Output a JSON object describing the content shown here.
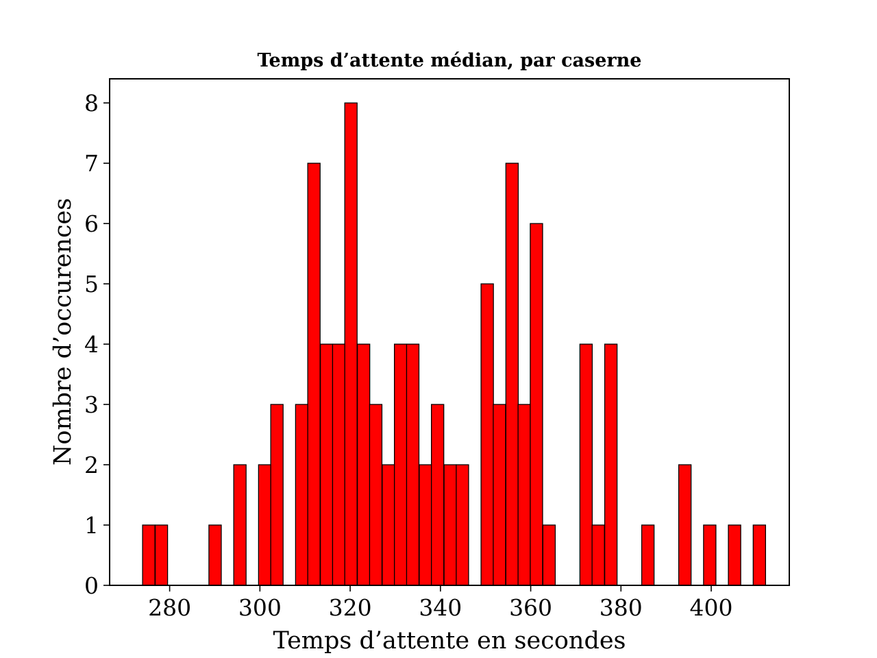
{
  "chart_data": {
    "type": "bar",
    "title": "Temps d’attente médian, par caserne",
    "xlabel": "Temps d’attente en secondes",
    "ylabel": "Nombre d’occurences",
    "xlim": [
      266.7,
      417.3
    ],
    "ylim": [
      0,
      8.4
    ],
    "bin_width": 2.74,
    "xticks": [
      280,
      300,
      320,
      340,
      360,
      380,
      400
    ],
    "yticks": [
      0,
      1,
      2,
      3,
      4,
      5,
      6,
      7,
      8
    ],
    "grid": false,
    "legend": "none",
    "bar_color": "#ff0000",
    "edge_color": "#000000",
    "bins": [
      {
        "x": 274.0,
        "count": 1
      },
      {
        "x": 276.8,
        "count": 1
      },
      {
        "x": 288.7,
        "count": 1
      },
      {
        "x": 294.2,
        "count": 2
      },
      {
        "x": 299.7,
        "count": 2
      },
      {
        "x": 302.4,
        "count": 3
      },
      {
        "x": 307.9,
        "count": 3
      },
      {
        "x": 310.6,
        "count": 7
      },
      {
        "x": 313.4,
        "count": 4
      },
      {
        "x": 316.1,
        "count": 4
      },
      {
        "x": 318.8,
        "count": 8
      },
      {
        "x": 321.6,
        "count": 4
      },
      {
        "x": 324.3,
        "count": 3
      },
      {
        "x": 327.1,
        "count": 2
      },
      {
        "x": 329.8,
        "count": 4
      },
      {
        "x": 332.5,
        "count": 4
      },
      {
        "x": 335.3,
        "count": 2
      },
      {
        "x": 338.0,
        "count": 3
      },
      {
        "x": 340.8,
        "count": 2
      },
      {
        "x": 343.5,
        "count": 2
      },
      {
        "x": 349.0,
        "count": 5
      },
      {
        "x": 351.7,
        "count": 3
      },
      {
        "x": 354.5,
        "count": 7
      },
      {
        "x": 357.2,
        "count": 3
      },
      {
        "x": 359.9,
        "count": 6
      },
      {
        "x": 362.7,
        "count": 1
      },
      {
        "x": 370.9,
        "count": 4
      },
      {
        "x": 373.6,
        "count": 1
      },
      {
        "x": 376.4,
        "count": 4
      },
      {
        "x": 384.6,
        "count": 1
      },
      {
        "x": 392.8,
        "count": 2
      },
      {
        "x": 398.3,
        "count": 1
      },
      {
        "x": 403.8,
        "count": 1
      },
      {
        "x": 409.3,
        "count": 1
      }
    ]
  }
}
